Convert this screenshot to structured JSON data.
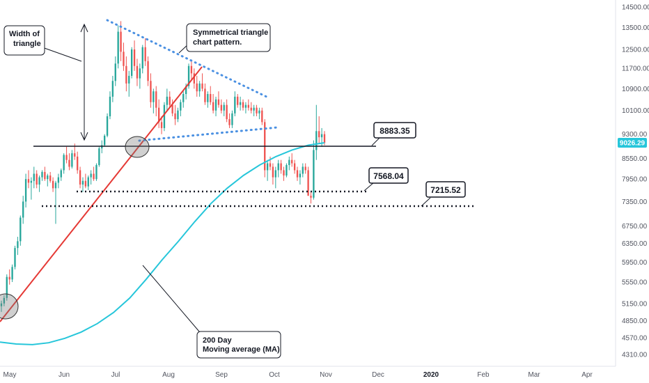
{
  "chart_data": {
    "type": "candlestick",
    "y_axis": {
      "ticks": [
        14500,
        13500,
        12500,
        11700,
        10900,
        10100,
        9300,
        8550,
        7950,
        7350,
        6750,
        6350,
        5950,
        5550,
        5150,
        4850,
        4570,
        4310
      ],
      "tick_labels": [
        "14500.00",
        "13500.00",
        "12500.00",
        "11700.00",
        "10900.00",
        "10100.00",
        "9300.00",
        "8550.00",
        "7950.00",
        "7350.00",
        "6750.00",
        "6350.00",
        "5950.00",
        "5550.00",
        "5150.00",
        "4850.00",
        "4570.00",
        "4310.00"
      ],
      "scale": "log"
    },
    "x_axis": {
      "tick_labels": [
        "May",
        "Jun",
        "Jul",
        "Aug",
        "Sep",
        "Oct",
        "Nov",
        "Dec",
        "2020",
        "Feb",
        "Mar",
        "Apr"
      ],
      "year_labels": [
        "2020"
      ]
    },
    "last_price_label": "9026.29",
    "last_price": 9026.29,
    "ohlc": [
      [
        5100,
        5200,
        5000,
        5150
      ],
      [
        5150,
        5300,
        5100,
        5250
      ],
      [
        5250,
        5700,
        5200,
        5650
      ],
      [
        5650,
        5800,
        5500,
        5600
      ],
      [
        5600,
        5900,
        5550,
        5850
      ],
      [
        5850,
        6300,
        5800,
        6250
      ],
      [
        6250,
        6500,
        6100,
        6400
      ],
      [
        6400,
        7000,
        6300,
        6950
      ],
      [
        6950,
        7500,
        6800,
        7350
      ],
      [
        7350,
        8100,
        7200,
        7950
      ],
      [
        7950,
        8200,
        7700,
        7850
      ],
      [
        7850,
        8000,
        7400,
        7900
      ],
      [
        7900,
        8300,
        7700,
        8100
      ],
      [
        8100,
        8200,
        7700,
        7800
      ],
      [
        7800,
        8050,
        7600,
        8000
      ],
      [
        8000,
        8200,
        7900,
        8150
      ],
      [
        8150,
        8300,
        7900,
        7950
      ],
      [
        7950,
        8100,
        7750,
        8050
      ],
      [
        8050,
        8150,
        7850,
        7900
      ],
      [
        7900,
        8000,
        7600,
        7700
      ],
      [
        7700,
        7900,
        6800,
        7850
      ],
      [
        7850,
        8100,
        7700,
        8000
      ],
      [
        8000,
        8250,
        7900,
        8200
      ],
      [
        8200,
        8700,
        8100,
        8650
      ],
      [
        8650,
        8900,
        8400,
        8500
      ],
      [
        8500,
        8700,
        8200,
        8300
      ],
      [
        8300,
        8800,
        8250,
        8700
      ],
      [
        8700,
        9000,
        8500,
        8600
      ],
      [
        8600,
        8750,
        8100,
        8200
      ],
      [
        8200,
        8300,
        7700,
        7800
      ],
      [
        7800,
        8000,
        7600,
        7900
      ],
      [
        7900,
        8100,
        7700,
        7750
      ],
      [
        7750,
        8050,
        7650,
        8000
      ],
      [
        8000,
        8200,
        7800,
        8100
      ],
      [
        8100,
        8300,
        7900,
        7950
      ],
      [
        7950,
        8400,
        7900,
        8350
      ],
      [
        8350,
        8900,
        8300,
        8850
      ],
      [
        8850,
        9100,
        8700,
        8950
      ],
      [
        8950,
        9300,
        8900,
        9250
      ],
      [
        9250,
        10000,
        9200,
        9900
      ],
      [
        9900,
        10800,
        9800,
        10600
      ],
      [
        10600,
        11400,
        10400,
        11200
      ],
      [
        11200,
        12200,
        11000,
        11900
      ],
      [
        11900,
        13600,
        11700,
        13300
      ],
      [
        13300,
        13800,
        12000,
        12400
      ],
      [
        12400,
        12800,
        11600,
        11800
      ],
      [
        11800,
        12200,
        10800,
        11100
      ],
      [
        11100,
        11600,
        10600,
        11400
      ],
      [
        11400,
        12600,
        11300,
        12500
      ],
      [
        12500,
        12900,
        11600,
        11800
      ],
      [
        11800,
        12100,
        11000,
        11300
      ],
      [
        11300,
        11900,
        10900,
        11700
      ],
      [
        11700,
        12700,
        11500,
        12600
      ],
      [
        12600,
        13000,
        11800,
        12000
      ],
      [
        12000,
        12200,
        11000,
        11200
      ],
      [
        11200,
        11500,
        10200,
        10400
      ],
      [
        10400,
        10900,
        10000,
        10800
      ],
      [
        10800,
        11000,
        9900,
        10200
      ],
      [
        10200,
        10500,
        9500,
        9700
      ],
      [
        9700,
        9900,
        9300,
        9500
      ],
      [
        9500,
        10400,
        9400,
        10300
      ],
      [
        10300,
        10900,
        10100,
        10600
      ],
      [
        10600,
        10800,
        10200,
        10300
      ],
      [
        10300,
        10500,
        9900,
        10000
      ],
      [
        10000,
        10300,
        9600,
        9800
      ],
      [
        9800,
        10200,
        9700,
        10100
      ],
      [
        10100,
        10500,
        9900,
        10400
      ],
      [
        10400,
        10800,
        10200,
        10700
      ],
      [
        10700,
        11100,
        10500,
        11000
      ],
      [
        11000,
        11900,
        10900,
        11800
      ],
      [
        11800,
        12000,
        11200,
        11500
      ],
      [
        11500,
        11700,
        10900,
        11100
      ],
      [
        11100,
        11400,
        10600,
        10800
      ],
      [
        10800,
        11200,
        10600,
        11100
      ],
      [
        11100,
        11500,
        10800,
        10900
      ],
      [
        10900,
        11100,
        10300,
        10400
      ],
      [
        10400,
        10800,
        10200,
        10700
      ],
      [
        10700,
        11000,
        10300,
        10400
      ],
      [
        10400,
        10700,
        10000,
        10100
      ],
      [
        10100,
        10600,
        9900,
        10500
      ],
      [
        10500,
        10800,
        10200,
        10300
      ],
      [
        10300,
        10500,
        10000,
        10100
      ],
      [
        10100,
        10400,
        9900,
        10300
      ],
      [
        10300,
        10500,
        9700,
        9800
      ],
      [
        9800,
        10000,
        9500,
        9600
      ],
      [
        9600,
        10100,
        9500,
        10000
      ],
      [
        10000,
        10800,
        9900,
        10600
      ],
      [
        10600,
        10700,
        10200,
        10300
      ],
      [
        10300,
        10600,
        10100,
        10400
      ],
      [
        10400,
        10500,
        10100,
        10200
      ],
      [
        10200,
        10400,
        10000,
        10300
      ],
      [
        10300,
        10500,
        10100,
        10200
      ],
      [
        10200,
        10400,
        10000,
        10100
      ],
      [
        10100,
        10300,
        9900,
        10200
      ],
      [
        10200,
        10300,
        9900,
        10000
      ],
      [
        10000,
        10200,
        9800,
        10100
      ],
      [
        10100,
        10200,
        9600,
        9700
      ],
      [
        9700,
        9800,
        8000,
        8200
      ],
      [
        8200,
        8500,
        7900,
        8400
      ],
      [
        8400,
        8600,
        8200,
        8300
      ],
      [
        8300,
        8400,
        7800,
        8000
      ],
      [
        8000,
        8300,
        7700,
        8200
      ],
      [
        8200,
        8500,
        8000,
        8400
      ],
      [
        8400,
        8500,
        8100,
        8200
      ],
      [
        8200,
        8300,
        7900,
        8050
      ],
      [
        8050,
        8400,
        8000,
        8350
      ],
      [
        8350,
        8600,
        8200,
        8500
      ],
      [
        8500,
        8700,
        8300,
        8400
      ],
      [
        8400,
        8500,
        8100,
        8200
      ],
      [
        8200,
        8300,
        7900,
        8000
      ],
      [
        8000,
        8200,
        7800,
        8100
      ],
      [
        8100,
        8400,
        8000,
        8300
      ],
      [
        8300,
        8400,
        8100,
        8200
      ],
      [
        8200,
        8300,
        7500,
        7500
      ],
      [
        7500,
        7600,
        7300,
        7450
      ],
      [
        7450,
        9100,
        7400,
        8800
      ],
      [
        8800,
        10300,
        8500,
        9400
      ],
      [
        9400,
        9900,
        9000,
        9200
      ],
      [
        9200,
        9500,
        8900,
        9300
      ],
      [
        9300,
        9400,
        8950,
        9026.29
      ]
    ],
    "ma200": [
      4500,
      4470,
      4460,
      4490,
      4560,
      4660,
      4800,
      4990,
      5250,
      5600,
      6000,
      6400,
      6850,
      7300,
      7700,
      8050,
      8350,
      8600,
      8800,
      8950,
      9026.29
    ],
    "annotations": {
      "callouts": [
        "Width of\ntriangle",
        "Symmetrical triangle\nchart pattern.",
        "200 Day\nMoving average (MA)"
      ],
      "levels": [
        {
          "label": "8883.35",
          "value": 8883.35
        },
        {
          "label": "7568.04",
          "value": 7568.04
        },
        {
          "label": "7215.52",
          "value": 7215.52
        }
      ]
    },
    "colors": {
      "up": "#26a69a",
      "down": "#ef5350",
      "ma": "#26c6da",
      "trend": "#e53935",
      "triangle": "#4a90e2",
      "badge": "#26c6da"
    },
    "grid": false
  }
}
